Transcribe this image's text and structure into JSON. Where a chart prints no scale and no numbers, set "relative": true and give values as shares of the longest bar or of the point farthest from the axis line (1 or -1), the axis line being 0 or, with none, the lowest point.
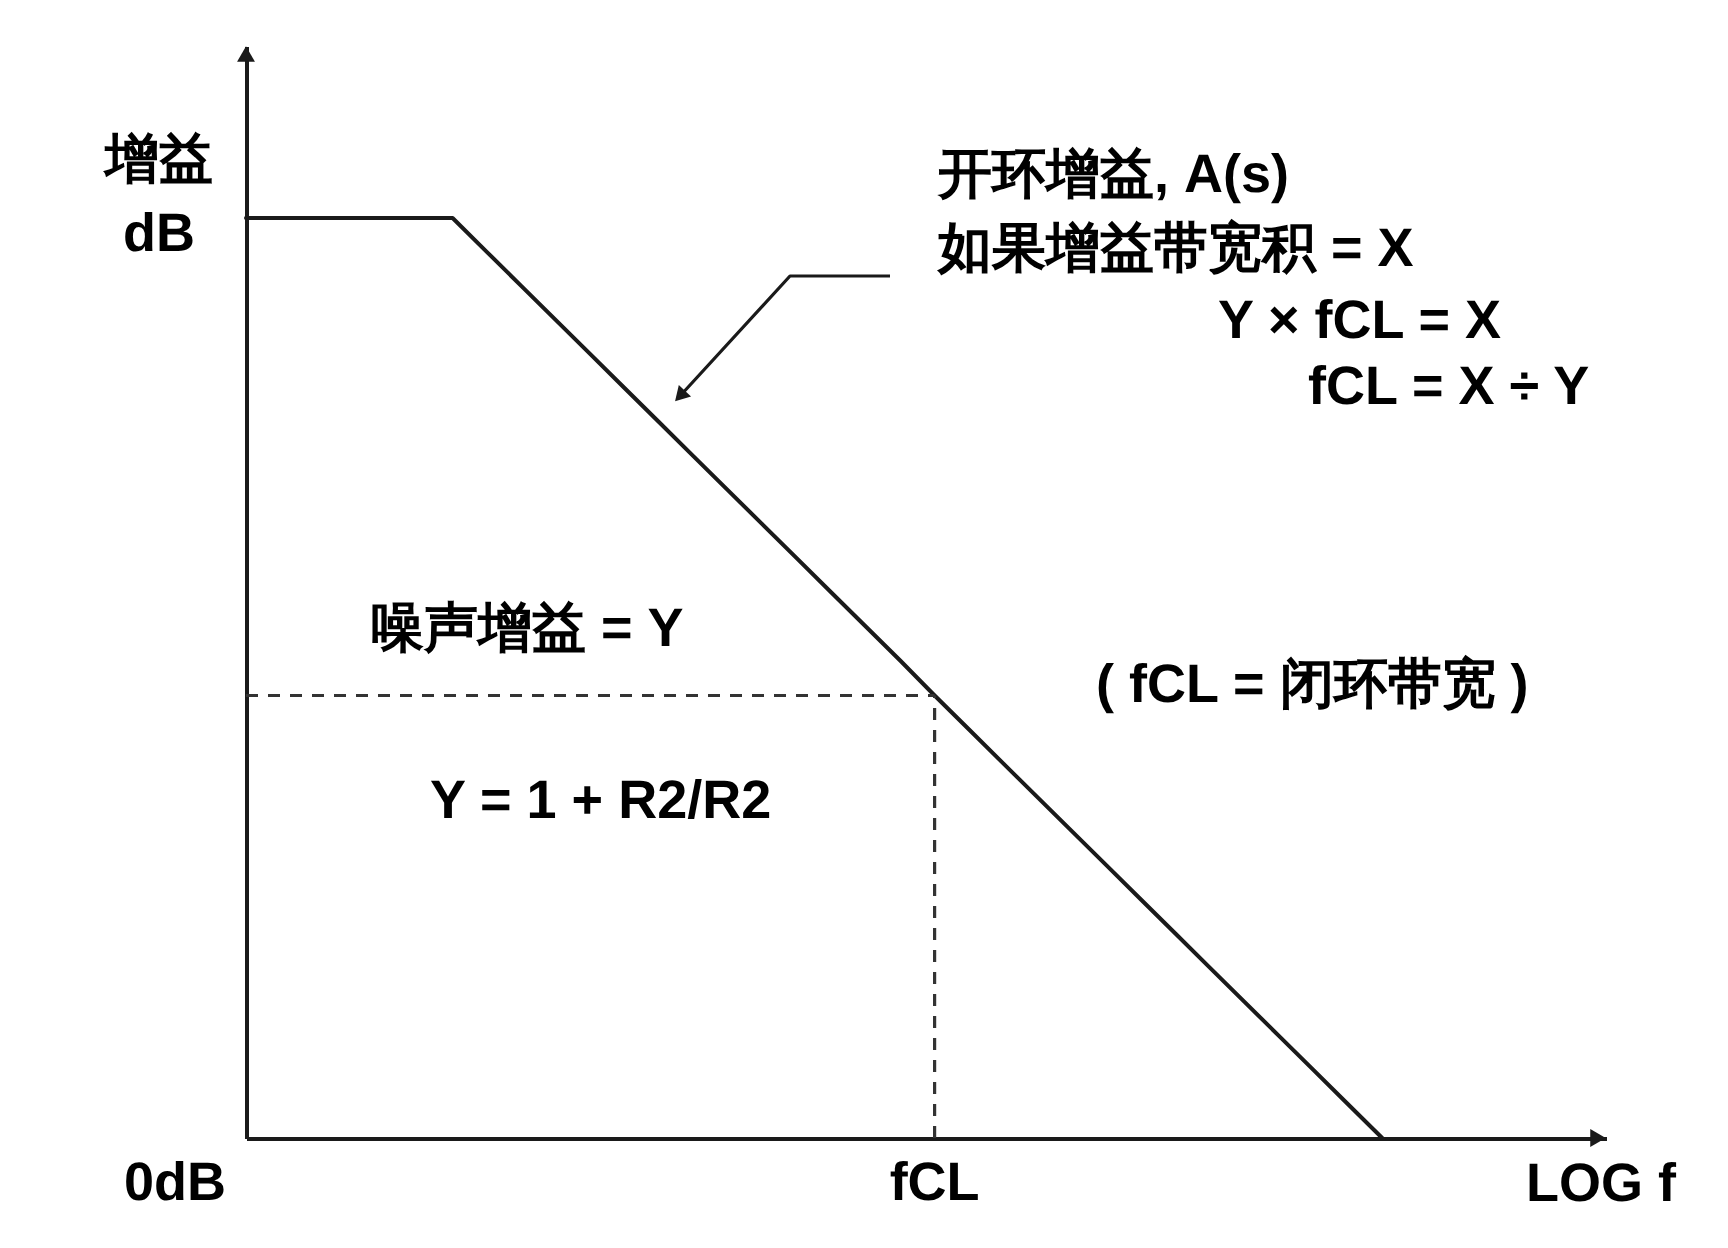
{
  "chart_data": {
    "type": "line",
    "relative": true,
    "ylabel": "增益\ndB",
    "xlabel": "LOG f",
    "categories": [
      null,
      null,
      null,
      null,
      null,
      null,
      null,
      null,
      null,
      null,
      null,
      null,
      null,
      null,
      null,
      null,
      null,
      null,
      null,
      null,
      null,
      null,
      null,
      null,
      null,
      null,
      null,
      null,
      null,
      null,
      null,
      null,
      null,
      null,
      null,
      null,
      null,
      null,
      null,
      null
    ],
    "series": [
      {
        "color": "#1a1a1a",
        "values": [
          1,
          1,
          1,
          1,
          1,
          1,
          1,
          0.963,
          0.926,
          0.889,
          0.852,
          0.815,
          0.778,
          0.741,
          0.704,
          0.667,
          0.63,
          0.593,
          0.556,
          0.519,
          0.481,
          0.444,
          0.407,
          0.37,
          0.333,
          0.296,
          0.259,
          0.222,
          0.185,
          0.148,
          0.111,
          0.074,
          0.037,
          0,
          null,
          null,
          null,
          null,
          null,
          null
        ]
      }
    ],
    "ref_lines": [
      {
        "axis": "y",
        "value": 0.481,
        "color": "#333333",
        "line_style": "dashed"
      },
      {
        "axis": "x",
        "label": "fCL",
        "color": "#333333",
        "line_style": "dashed"
      }
    ],
    "annotations": [
      "开环增益, A(s)",
      "如果增益带宽积 = X",
      "Y × fCL = X",
      "fCL = X ÷ Y",
      "噪声增益 = Y",
      "Y = 1 + R2/R2",
      "( fCL = 闭环带宽 )",
      "0dB"
    ],
    "marker": "none",
    "line_style": "solid"
  }
}
